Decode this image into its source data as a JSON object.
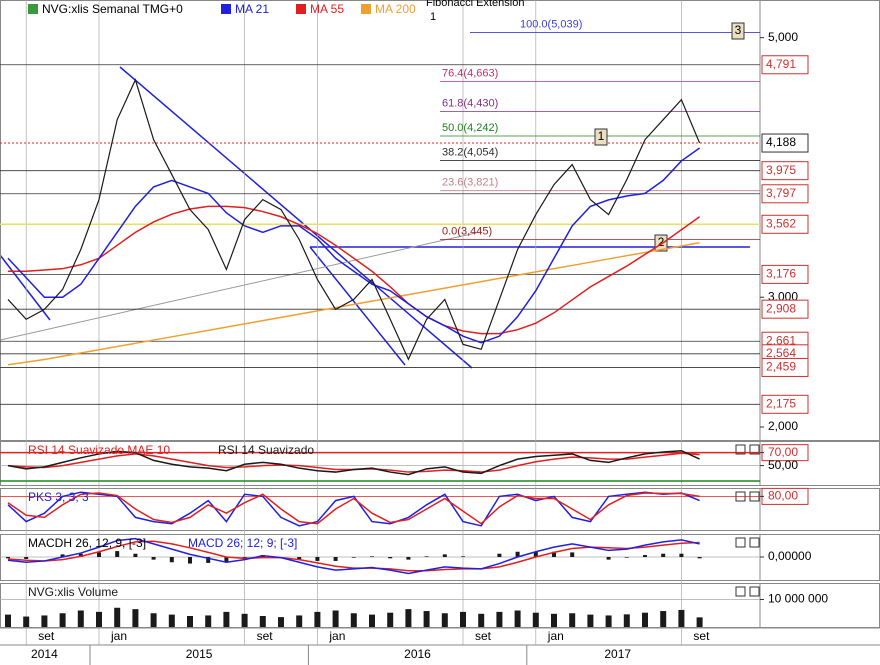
{
  "chart_data": [
    {
      "type": "line",
      "x": [
        "2014-08",
        "2014-09",
        "2014-10",
        "2014-11",
        "2014-12",
        "2015-01",
        "2015-02",
        "2015-03",
        "2015-04",
        "2015-05",
        "2015-06",
        "2015-07",
        "2015-08",
        "2015-09",
        "2015-10",
        "2015-11",
        "2015-12",
        "2016-01",
        "2016-02",
        "2016-03",
        "2016-04",
        "2016-05",
        "2016-06",
        "2016-07",
        "2016-08",
        "2016-09",
        "2016-10",
        "2016-11",
        "2016-12",
        "2017-01",
        "2017-02",
        "2017-03",
        "2017-04",
        "2017-05",
        "2017-06",
        "2017-07",
        "2017-08",
        "2017-09",
        "2017-10"
      ],
      "series": [
        {
          "name": "NVG:xlis Semanal TMG+0",
          "color": "#1a1a1a",
          "values": [
            2983,
            2830,
            2906,
            3060,
            3368,
            3752,
            4368,
            4675,
            4214,
            3945,
            3675,
            3522,
            3214,
            3598,
            3752,
            3675,
            3445,
            3137,
            2906,
            2983,
            3137,
            2830,
            2522,
            2830,
            2983,
            2637,
            2599,
            2983,
            3368,
            3637,
            3868,
            4022,
            3752,
            3637,
            3906,
            4214,
            4368,
            4522,
            4188
          ]
        },
        {
          "name": "MA 21",
          "color": "#2020e0",
          "values": [
            3300,
            3150,
            3000,
            3000,
            3100,
            3300,
            3500,
            3700,
            3850,
            3900,
            3850,
            3800,
            3650,
            3550,
            3500,
            3550,
            3550,
            3450,
            3300,
            3200,
            3100,
            3050,
            2950,
            2850,
            2780,
            2700,
            2650,
            2700,
            2850,
            3050,
            3300,
            3550,
            3700,
            3750,
            3780,
            3800,
            3900,
            4050,
            4150
          ]
        },
        {
          "name": "MA 55",
          "color": "#e02020",
          "values": [
            3200,
            3200,
            3210,
            3220,
            3250,
            3300,
            3400,
            3500,
            3580,
            3640,
            3680,
            3700,
            3700,
            3690,
            3660,
            3620,
            3560,
            3490,
            3400,
            3300,
            3200,
            3080,
            2950,
            2850,
            2780,
            2740,
            2720,
            2720,
            2750,
            2800,
            2880,
            2980,
            3080,
            3160,
            3240,
            3330,
            3420,
            3520,
            3620
          ]
        },
        {
          "name": "MA 200",
          "color": "#f0a030",
          "values": [
            2480,
            2500,
            2520,
            2545,
            2570,
            2595,
            2620,
            2645,
            2670,
            2695,
            2720,
            2745,
            2770,
            2795,
            2820,
            2845,
            2870,
            2895,
            2920,
            2945,
            2970,
            2995,
            3020,
            3045,
            3070,
            3095,
            3120,
            3145,
            3170,
            3195,
            3220,
            3245,
            3270,
            3295,
            3320,
            3345,
            3370,
            3395,
            3420
          ]
        }
      ],
      "ylim": [
        1900,
        5290
      ],
      "yticks": [
        {
          "value": 5000,
          "label": "5,000"
        },
        {
          "value": 3000,
          "label": "3,000"
        },
        {
          "value": 2000,
          "label": "2,000"
        }
      ],
      "levels": [
        {
          "value": 4791,
          "label": "4,791"
        },
        {
          "value": 3975,
          "label": "3,975"
        },
        {
          "value": 3797,
          "label": "3,797"
        },
        {
          "value": 3562,
          "label": "3,562"
        },
        {
          "value": 3176,
          "label": "3,176"
        },
        {
          "value": 2908,
          "label": "2,908"
        },
        {
          "value": 2661,
          "label": "2,661"
        },
        {
          "value": 2564,
          "label": "2,564"
        },
        {
          "value": 2459,
          "label": "2,459"
        },
        {
          "value": 2175,
          "label": "2,175"
        }
      ],
      "last_price": {
        "value": 4188,
        "label": "4,188"
      },
      "fibonacci": {
        "title": "Fibonacci Extension",
        "anchor": "1",
        "levels": [
          {
            "value": 5039,
            "label": "100.0(5,039)",
            "color": "#4040d0"
          },
          {
            "value": 4663,
            "label": "76.4(4,663)",
            "color": "#c03070"
          },
          {
            "value": 4430,
            "label": "61.8(4,430)",
            "color": "#803080"
          },
          {
            "value": 4242,
            "label": "50.0(4,242)",
            "color": "#208020"
          },
          {
            "value": 4054,
            "label": "38.2(4,054)",
            "color": "#303030"
          },
          {
            "value": 3821,
            "label": "23.6(3,821)",
            "color": "#c08090"
          },
          {
            "value": 3445,
            "label": "0.0(3,445)",
            "color": "#a02020"
          }
        ]
      },
      "fib_points": [
        "1",
        "2",
        "3"
      ],
      "xticks": [
        {
          "value": "2014-09",
          "label": "set"
        },
        {
          "value": "2015-01",
          "label": "jan"
        },
        {
          "value": "2015-09",
          "label": "set"
        },
        {
          "value": "2016-01",
          "label": "jan"
        },
        {
          "value": "2016-09",
          "label": "set"
        },
        {
          "value": "2017-01",
          "label": "jan"
        },
        {
          "value": "2017-09",
          "label": "set"
        }
      ],
      "year_labels": [
        "2014",
        "2015",
        "2016",
        "2017"
      ]
    },
    {
      "type": "line",
      "series": [
        {
          "name": "RSI 14 Suavizado MAE 10",
          "color": "#e02020",
          "values": [
            50,
            48,
            47,
            50,
            55,
            60,
            65,
            68,
            65,
            60,
            55,
            50,
            47,
            48,
            50,
            51,
            50,
            47,
            44,
            44,
            45,
            43,
            40,
            41,
            43,
            42,
            40,
            43,
            50,
            56,
            60,
            63,
            62,
            60,
            60,
            63,
            66,
            69,
            67
          ]
        },
        {
          "name": "RSI 14 Suavizado",
          "color": "#1a1a1a",
          "values": [
            50,
            45,
            48,
            55,
            62,
            68,
            72,
            70,
            58,
            52,
            48,
            46,
            42,
            52,
            55,
            52,
            46,
            42,
            40,
            44,
            46,
            40,
            36,
            45,
            48,
            40,
            38,
            50,
            60,
            64,
            66,
            68,
            58,
            55,
            62,
            68,
            71,
            73,
            60
          ]
        }
      ],
      "ylim": [
        20,
        88
      ],
      "yticks": [
        {
          "value": 70,
          "label": "70,00"
        },
        {
          "value": 50,
          "label": "50,00"
        }
      ]
    },
    {
      "type": "line",
      "series": [
        {
          "name": "PKS 3, 3, 3",
          "color": "#2020e0",
          "values": [
            60,
            20,
            40,
            80,
            90,
            85,
            80,
            30,
            20,
            15,
            40,
            70,
            20,
            85,
            80,
            30,
            10,
            20,
            70,
            80,
            20,
            15,
            30,
            60,
            85,
            20,
            10,
            80,
            85,
            70,
            80,
            30,
            20,
            80,
            85,
            90,
            85,
            88,
            70
          ]
        },
        {
          "color": "#e02020",
          "values": [
            65,
            35,
            30,
            60,
            85,
            88,
            82,
            50,
            25,
            18,
            30,
            60,
            40,
            65,
            85,
            50,
            20,
            15,
            50,
            75,
            40,
            18,
            25,
            50,
            75,
            45,
            15,
            55,
            82,
            75,
            75,
            50,
            25,
            60,
            82,
            88,
            87,
            87,
            80
          ]
        }
      ],
      "ylim": [
        0,
        100
      ],
      "yticks": [
        {
          "value": 80,
          "label": "80,00"
        }
      ]
    },
    {
      "type": "macd",
      "series": [
        {
          "name": "MACDH 26, 12, 9, [-3]",
          "color": "#1a1a1a",
          "values": [
            -20,
            -30,
            0,
            40,
            50,
            70,
            90,
            50,
            -40,
            -80,
            -100,
            -90,
            -80,
            -20,
            30,
            0,
            -40,
            -60,
            -60,
            -10,
            10,
            -20,
            -40,
            10,
            40,
            10,
            0,
            50,
            80,
            80,
            80,
            70,
            0,
            -40,
            -10,
            30,
            50,
            50,
            -20
          ]
        },
        {
          "name": "MACD 26; 12; 9; [-3]",
          "color": "#2020e0",
          "values": [
            -50,
            -80,
            -60,
            0,
            60,
            150,
            250,
            280,
            200,
            120,
            40,
            -20,
            -80,
            -40,
            20,
            -10,
            -80,
            -150,
            -200,
            -180,
            -160,
            -200,
            -250,
            -200,
            -150,
            -170,
            -180,
            -100,
            0,
            80,
            150,
            200,
            150,
            100,
            120,
            180,
            230,
            260,
            200
          ]
        },
        {
          "color": "#e02020",
          "values": [
            -30,
            -50,
            -60,
            -40,
            10,
            80,
            160,
            230,
            240,
            200,
            140,
            70,
            0,
            -20,
            -10,
            -10,
            -40,
            -90,
            -140,
            -170,
            -170,
            -180,
            -210,
            -210,
            -190,
            -180,
            -180,
            -150,
            -80,
            0,
            70,
            130,
            150,
            140,
            130,
            150,
            180,
            210,
            220
          ]
        }
      ],
      "ylim": [
        -350,
        350
      ],
      "yticks": [
        {
          "value": 0,
          "label": "0,00000"
        }
      ]
    },
    {
      "type": "bar",
      "series": [
        {
          "name": "NVG:xlis Volume",
          "color": "#1a1a1a",
          "values": [
            4500000,
            3800000,
            4200000,
            5000000,
            6000000,
            5500000,
            7000000,
            6500000,
            5000000,
            4500000,
            4000000,
            4200000,
            5500000,
            4800000,
            4000000,
            3600000,
            4200000,
            5500000,
            6000000,
            5000000,
            4500000,
            5200000,
            6500000,
            5800000,
            5000000,
            5500000,
            4800000,
            5500000,
            6000000,
            5200000,
            4800000,
            5000000,
            4500000,
            4200000,
            4600000,
            5200000,
            5800000,
            6200000,
            3500000
          ]
        }
      ],
      "ylim": [
        0,
        16000000
      ],
      "yticks": [
        {
          "value": 10000000,
          "label": "10 000 000"
        }
      ]
    }
  ]
}
